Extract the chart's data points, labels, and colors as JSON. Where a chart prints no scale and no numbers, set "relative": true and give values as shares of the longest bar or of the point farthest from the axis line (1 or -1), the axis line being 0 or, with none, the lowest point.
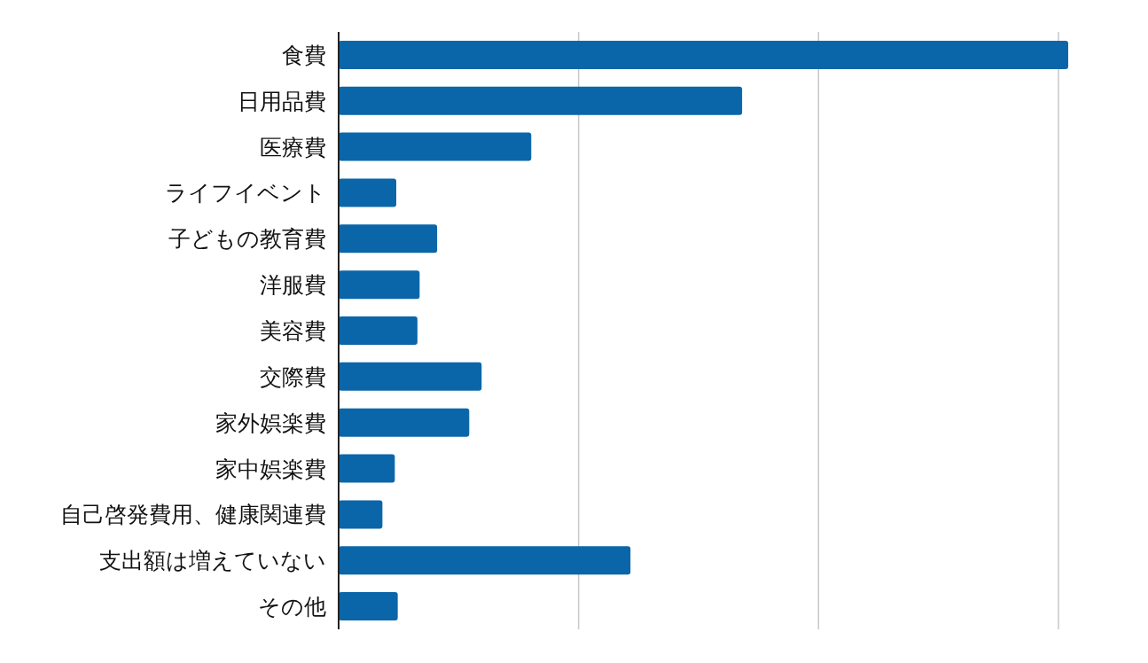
{
  "chart_data": {
    "type": "bar",
    "orientation": "horizontal",
    "relative": true,
    "grid": "x",
    "categories": [
      "食費",
      "日用品費",
      "医療費",
      "ライフイベント",
      "子どもの教育費",
      "洋服費",
      "美容費",
      "交際費",
      "家外娯楽費",
      "家中娯楽費",
      "自己啓発費用、健康関連費",
      "支出額は増えていない",
      "その他"
    ],
    "values": [
      1,
      0.553,
      0.264,
      0.079,
      0.135,
      0.111,
      0.108,
      0.196,
      0.179,
      0.077,
      0.06,
      0.4,
      0.081
    ],
    "color": "#0b66a9"
  }
}
